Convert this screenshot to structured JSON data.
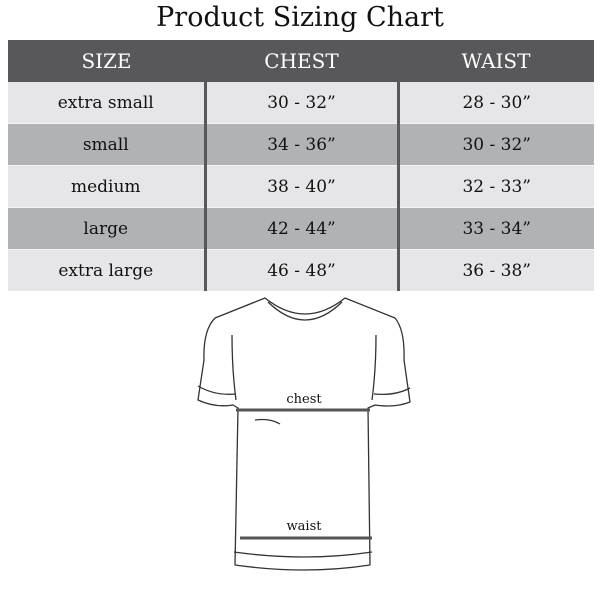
{
  "title": "Product Sizing Chart",
  "headers": [
    "SIZE",
    "CHEST",
    "WAIST"
  ],
  "rows": [
    {
      "size": "extra small",
      "chest": "30 - 32”",
      "waist": "28 - 30”"
    },
    {
      "size": "small",
      "chest": "34 - 36”",
      "waist": "30 - 32”"
    },
    {
      "size": "medium",
      "chest": "38 - 40”",
      "waist": "32 - 33”"
    },
    {
      "size": "large",
      "chest": "42 - 44”",
      "waist": "33 - 34”"
    },
    {
      "size": "extra large",
      "chest": "46 - 48”",
      "waist": "36 - 38”"
    }
  ],
  "diagram": {
    "chest_label": "chest",
    "waist_label": "waist"
  },
  "colors": {
    "header_bg": "#58585a",
    "row_light": "#e6e6e8",
    "row_dark": "#b1b2b4"
  }
}
